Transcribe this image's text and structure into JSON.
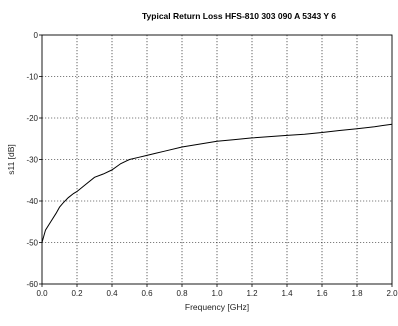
{
  "chart_data": {
    "type": "line",
    "title": "Typical Return Loss HFS-810 303 090 A 5343 Y 6",
    "xlabel": "Frequency [GHz]",
    "ylabel": "s11 [dB]",
    "xlim": [
      0,
      2.0
    ],
    "ylim": [
      -60,
      0
    ],
    "x_ticks": [
      0.0,
      0.2,
      0.4,
      0.6,
      0.8,
      1.0,
      1.2,
      1.4,
      1.6,
      1.8,
      2.0
    ],
    "x_tick_labels": [
      "0.0",
      "0.2",
      "0.4",
      "0.6",
      "0.8",
      "1.0",
      "1.2",
      "1.4",
      "1.6",
      "1.8",
      "2.0"
    ],
    "y_ticks": [
      0,
      -10,
      -20,
      -30,
      -40,
      -50,
      -60
    ],
    "y_tick_labels": [
      "0",
      "-10",
      "-20",
      "-30",
      "-40",
      "-50",
      "-60"
    ],
    "grid": true,
    "series": [
      {
        "x": [
          0.0,
          0.02,
          0.05,
          0.08,
          0.1,
          0.12,
          0.15,
          0.18,
          0.2,
          0.25,
          0.3,
          0.35,
          0.4,
          0.45,
          0.5,
          0.55,
          0.6,
          0.65,
          0.7,
          0.8,
          0.9,
          1.0,
          1.1,
          1.2,
          1.3,
          1.4,
          1.5,
          1.6,
          1.7,
          1.8,
          1.9,
          2.0
        ],
        "y": [
          -50.0,
          -47.0,
          -45.0,
          -43.0,
          -41.5,
          -40.5,
          -39.2,
          -38.2,
          -37.7,
          -36.0,
          -34.3,
          -33.5,
          -32.5,
          -31.0,
          -30.0,
          -29.5,
          -29.0,
          -28.5,
          -28.0,
          -27.0,
          -26.3,
          -25.6,
          -25.2,
          -24.8,
          -24.5,
          -24.2,
          -23.9,
          -23.5,
          -23.0,
          -22.6,
          -22.1,
          -21.5
        ]
      }
    ]
  }
}
